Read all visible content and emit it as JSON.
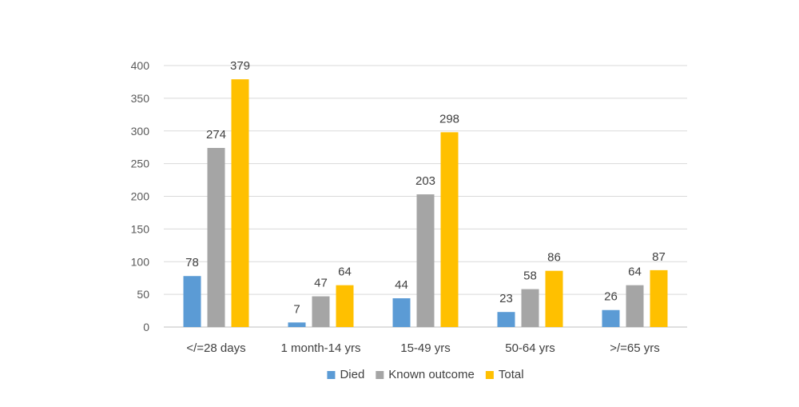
{
  "chart_data": {
    "type": "bar",
    "title": "",
    "xlabel": "",
    "ylabel": "",
    "categories": [
      "</=28 days",
      "1 month-14 yrs",
      "15-49 yrs",
      "50-64 yrs",
      ">/=65 yrs"
    ],
    "series": [
      {
        "name": "Died",
        "values": [
          78,
          7,
          44,
          23,
          26
        ],
        "color": "#5b9bd5"
      },
      {
        "name": "Known outcome",
        "values": [
          274,
          47,
          203,
          58,
          64
        ],
        "color": "#a5a5a5"
      },
      {
        "name": "Total",
        "values": [
          379,
          64,
          298,
          86,
          87
        ],
        "color": "#ffc000"
      }
    ],
    "ylim": [
      0,
      400
    ],
    "yticks": [
      0,
      50,
      100,
      150,
      200,
      250,
      300,
      350,
      400
    ],
    "grid": true,
    "legend": "bottom",
    "data_labels": true
  }
}
